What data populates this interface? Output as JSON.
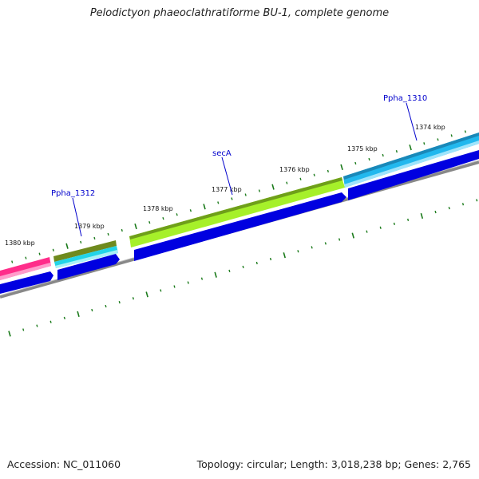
{
  "title": "Pelodictyon phaeoclathratiforme BU-1, complete genome",
  "footer": {
    "accession": "Accession: NC_011060",
    "summary": "Topology: circular; Length: 3,018,238 bp; Genes: 2,765"
  },
  "scale_labels": [
    "1380 kbp",
    "1379 kbp",
    "1378 kbp",
    "1377 kbp",
    "1376 kbp",
    "1375 kbp",
    "1374 kbp"
  ],
  "gene_labels": [
    "Ppha_1312",
    "secA",
    "Ppha_1310"
  ],
  "colors": {
    "tick": "#1a7a1a",
    "gene_label": "#0000cc",
    "cds_strand": "#0000e0",
    "backbone": "#808080",
    "feature_pink": "#ff2d8a",
    "feature_olive": "#6f8a1e",
    "feature_cyan": "#22d4e8",
    "feature_lime": "#a6f02a",
    "feature_sky": "#22b8ee"
  }
}
